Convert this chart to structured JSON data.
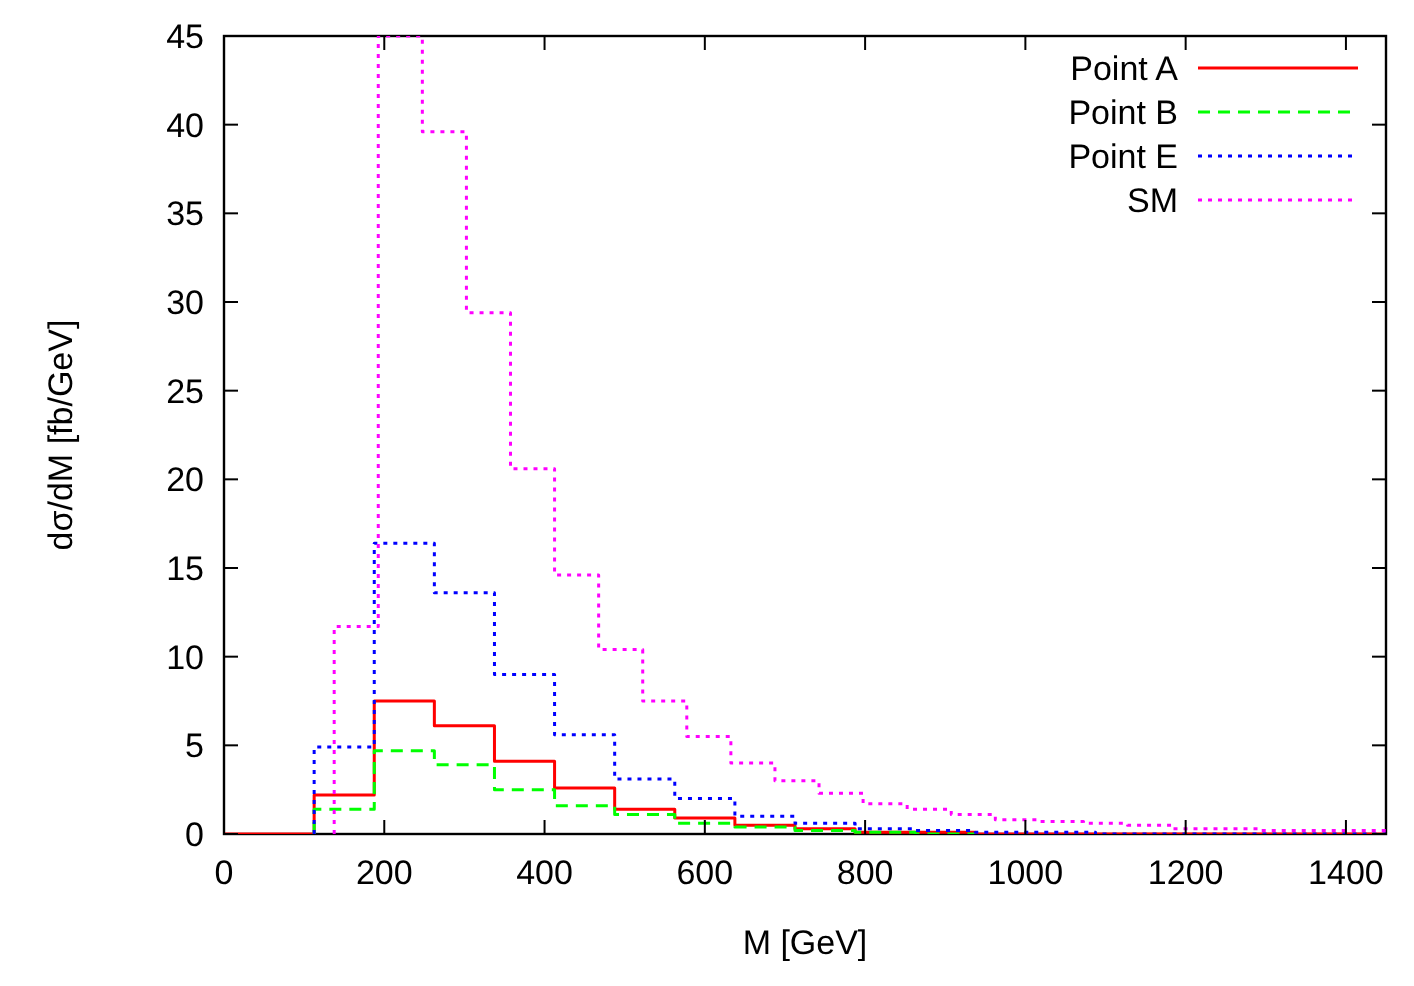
{
  "chart_data": {
    "type": "step",
    "xlabel": "M [GeV]",
    "ylabel": "dσ/dM [fb/GeV]",
    "xlim": [
      0,
      1450
    ],
    "ylim": [
      0,
      45
    ],
    "xticks": [
      0,
      200,
      400,
      600,
      800,
      1000,
      1200,
      1400
    ],
    "yticks": [
      0,
      5,
      10,
      15,
      20,
      25,
      30,
      35,
      40,
      45
    ],
    "grid": false,
    "legend": "top right",
    "series": [
      {
        "name": "Point A",
        "color": "#ff0000",
        "line_style": "solid",
        "x": [
          0,
          112.5,
          187.5,
          262.5,
          337.5,
          412.5,
          487.5,
          562.5,
          637.5,
          712.5,
          787.5,
          862.5,
          937.5,
          1012.5,
          1450
        ],
        "values": [
          0,
          2.2,
          7.5,
          6.1,
          4.1,
          2.6,
          1.4,
          0.9,
          0.5,
          0.3,
          0.1,
          0.1,
          0,
          0,
          0
        ]
      },
      {
        "name": "Point B",
        "color": "#00ff00",
        "line_style": "dashed",
        "x": [
          112.5,
          112.5,
          187.5,
          262.5,
          337.5,
          412.5,
          487.5,
          562.5,
          637.5,
          712.5,
          787.5,
          862.5,
          937.5
        ],
        "values": [
          0,
          1.4,
          4.7,
          3.9,
          2.5,
          1.6,
          1.1,
          0.6,
          0.4,
          0.2,
          0.1,
          0,
          0
        ]
      },
      {
        "name": "Point E",
        "color": "#0000ff",
        "line_style": "dotted",
        "x": [
          112.5,
          112.5,
          187.5,
          262.5,
          337.5,
          412.5,
          487.5,
          562.5,
          637.5,
          712.5,
          787.5,
          862.5,
          937.5,
          1012.5,
          1087.5,
          1450
        ],
        "values": [
          0,
          4.9,
          16.4,
          13.6,
          9,
          5.6,
          3.1,
          2,
          1,
          0.6,
          0.3,
          0.2,
          0.1,
          0.1,
          0,
          0
        ]
      },
      {
        "name": "SM",
        "color": "#ff00ff",
        "line_style": "dotted",
        "x": [
          137.5,
          137.5,
          192.5,
          247.5,
          302.5,
          357.5,
          412.5,
          467.5,
          522.5,
          577.5,
          632.5,
          687.5,
          742.5,
          797.5,
          852.5,
          907.5,
          962.5,
          1017.5,
          1072.5,
          1127.5,
          1182.5,
          1237.5,
          1292.5,
          1347.5,
          1402.5,
          1450
        ],
        "values": [
          0,
          11.7,
          45,
          39.6,
          29.4,
          20.6,
          14.6,
          10.4,
          7.5,
          5.5,
          4,
          3,
          2.3,
          1.7,
          1.4,
          1.1,
          0.8,
          0.7,
          0.6,
          0.5,
          0.3,
          0.3,
          0.2,
          0.2,
          0.2,
          0.2
        ]
      }
    ]
  }
}
